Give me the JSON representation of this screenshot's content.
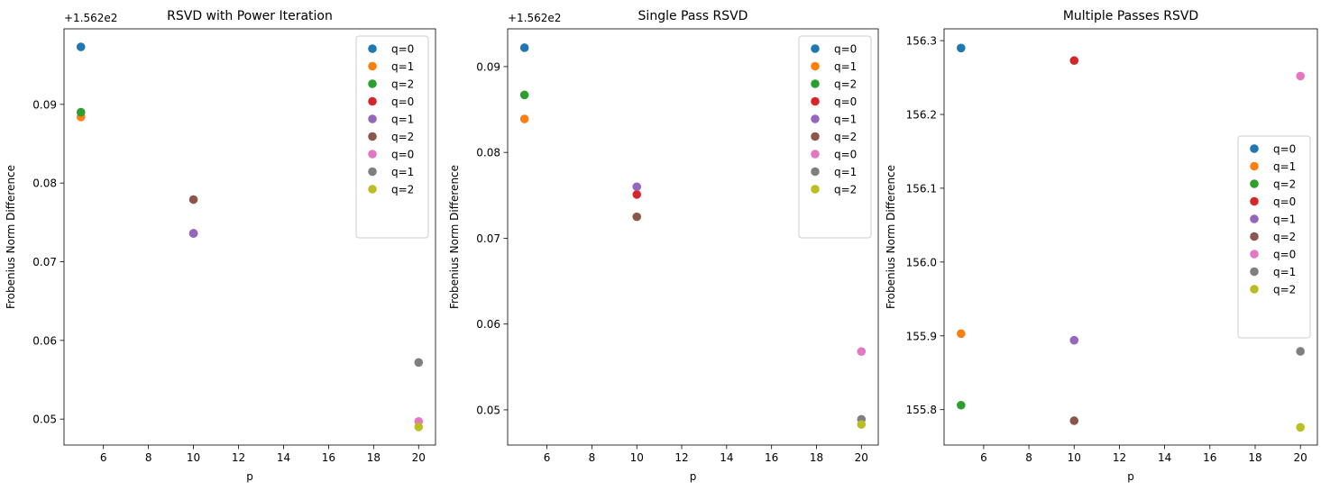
{
  "colors": {
    "q0_p5": "#1f77b4",
    "q1_p5": "#ff7f0e",
    "q2_p5": "#2ca02c",
    "q0_p10": "#d62728",
    "q1_p10": "#9467bd",
    "q2_p10": "#8c564b",
    "q0_p20": "#e377c2",
    "q1_p20": "#7f7f7f",
    "q2_p20": "#bcbd22"
  },
  "chart_data": [
    {
      "type": "scatter",
      "title": "RSVD with Power Iteration",
      "xlabel": "p",
      "ylabel": "Frobenius Norm Difference",
      "offset_label": "+1.562e2",
      "xlim": [
        4.25,
        20.75
      ],
      "ylim": [
        0.0467,
        0.0996
      ],
      "xticks": [
        6,
        8,
        10,
        12,
        14,
        16,
        18,
        20
      ],
      "yticks": [
        0.05,
        0.06,
        0.07,
        0.08,
        0.09
      ],
      "ytick_decimals": 2,
      "legend_position": "top-right",
      "series": [
        {
          "name": "q=0",
          "color": "#1f77b4",
          "x": [
            5
          ],
          "y": [
            0.0973
          ]
        },
        {
          "name": "q=1",
          "color": "#ff7f0e",
          "x": [
            5
          ],
          "y": [
            0.0884
          ]
        },
        {
          "name": "q=2",
          "color": "#2ca02c",
          "x": [
            5
          ],
          "y": [
            0.089
          ]
        },
        {
          "name": "q=0",
          "color": "#d62728",
          "x": [
            10
          ],
          "y": [
            0.0736
          ]
        },
        {
          "name": "q=1",
          "color": "#9467bd",
          "x": [
            10
          ],
          "y": [
            0.0736
          ]
        },
        {
          "name": "q=2",
          "color": "#8c564b",
          "x": [
            10
          ],
          "y": [
            0.0779
          ]
        },
        {
          "name": "q=0",
          "color": "#e377c2",
          "x": [
            20
          ],
          "y": [
            0.0497
          ]
        },
        {
          "name": "q=1",
          "color": "#7f7f7f",
          "x": [
            20
          ],
          "y": [
            0.0572
          ]
        },
        {
          "name": "q=2",
          "color": "#bcbd22",
          "x": [
            20
          ],
          "y": [
            0.049
          ]
        }
      ]
    },
    {
      "type": "scatter",
      "title": "Single Pass RSVD",
      "xlabel": "p",
      "ylabel": "Frobenius Norm Difference",
      "offset_label": "+1.562e2",
      "xlim": [
        4.25,
        20.75
      ],
      "ylim": [
        0.0459,
        0.0944
      ],
      "xticks": [
        6,
        8,
        10,
        12,
        14,
        16,
        18,
        20
      ],
      "yticks": [
        0.05,
        0.06,
        0.07,
        0.08,
        0.09
      ],
      "ytick_decimals": 2,
      "legend_position": "top-right",
      "series": [
        {
          "name": "q=0",
          "color": "#1f77b4",
          "x": [
            5
          ],
          "y": [
            0.0922
          ]
        },
        {
          "name": "q=1",
          "color": "#ff7f0e",
          "x": [
            5
          ],
          "y": [
            0.0839
          ]
        },
        {
          "name": "q=2",
          "color": "#2ca02c",
          "x": [
            5
          ],
          "y": [
            0.0867
          ]
        },
        {
          "name": "q=0",
          "color": "#d62728",
          "x": [
            10
          ],
          "y": [
            0.0751
          ]
        },
        {
          "name": "q=1",
          "color": "#9467bd",
          "x": [
            10
          ],
          "y": [
            0.076
          ]
        },
        {
          "name": "q=2",
          "color": "#8c564b",
          "x": [
            10
          ],
          "y": [
            0.0725
          ]
        },
        {
          "name": "q=0",
          "color": "#e377c2",
          "x": [
            20
          ],
          "y": [
            0.0568
          ]
        },
        {
          "name": "q=1",
          "color": "#7f7f7f",
          "x": [
            20
          ],
          "y": [
            0.0489
          ]
        },
        {
          "name": "q=2",
          "color": "#bcbd22",
          "x": [
            20
          ],
          "y": [
            0.0483
          ]
        }
      ]
    },
    {
      "type": "scatter",
      "title": "Multiple Passes RSVD",
      "xlabel": "p",
      "ylabel": "Frobenius Norm Difference",
      "offset_label": "",
      "xlim": [
        4.25,
        20.75
      ],
      "ylim": [
        155.752,
        156.316
      ],
      "xticks": [
        6,
        8,
        10,
        12,
        14,
        16,
        18,
        20
      ],
      "yticks": [
        155.8,
        155.9,
        156.0,
        156.1,
        156.2,
        156.3
      ],
      "ytick_decimals": 1,
      "legend_position": "center-right",
      "series": [
        {
          "name": "q=0",
          "color": "#1f77b4",
          "x": [
            5
          ],
          "y": [
            156.29
          ]
        },
        {
          "name": "q=1",
          "color": "#ff7f0e",
          "x": [
            5
          ],
          "y": [
            155.903
          ]
        },
        {
          "name": "q=2",
          "color": "#2ca02c",
          "x": [
            5
          ],
          "y": [
            155.806
          ]
        },
        {
          "name": "q=0",
          "color": "#d62728",
          "x": [
            10
          ],
          "y": [
            156.273
          ]
        },
        {
          "name": "q=1",
          "color": "#9467bd",
          "x": [
            10
          ],
          "y": [
            155.894
          ]
        },
        {
          "name": "q=2",
          "color": "#8c564b",
          "x": [
            10
          ],
          "y": [
            155.785
          ]
        },
        {
          "name": "q=0",
          "color": "#e377c2",
          "x": [
            20
          ],
          "y": [
            156.252
          ]
        },
        {
          "name": "q=1",
          "color": "#7f7f7f",
          "x": [
            20
          ],
          "y": [
            155.879
          ]
        },
        {
          "name": "q=2",
          "color": "#bcbd22",
          "x": [
            20
          ],
          "y": [
            155.776
          ]
        }
      ]
    }
  ]
}
